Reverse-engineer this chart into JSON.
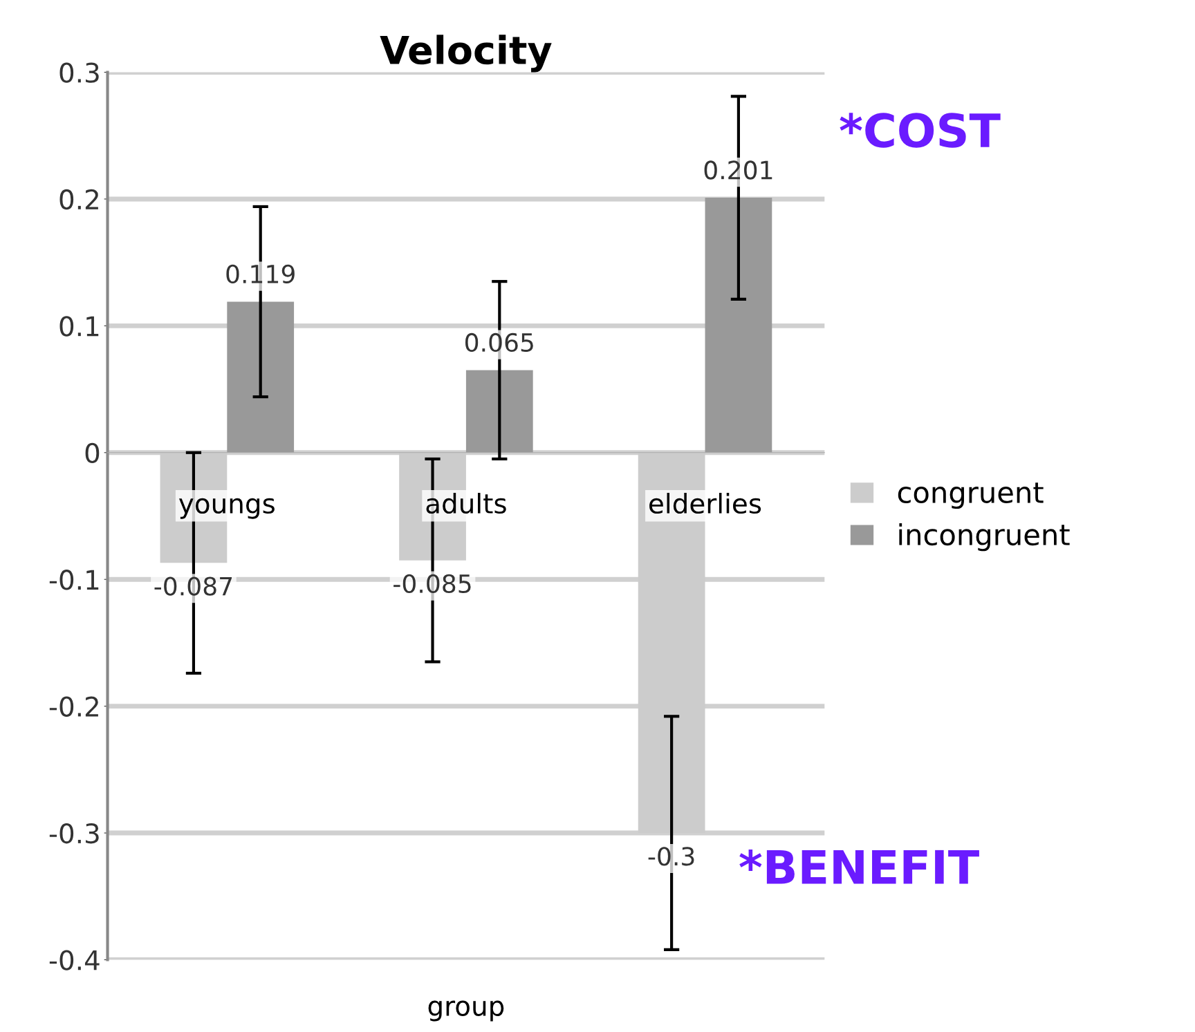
{
  "chart_data": {
    "type": "bar",
    "title": "Velocity",
    "xlabel": "group",
    "categories": [
      "youngs",
      "adults",
      "elderlies"
    ],
    "series": [
      {
        "name": "congruent",
        "color": "#cccccc",
        "values": [
          -0.087,
          -0.085,
          -0.3
        ],
        "errors": [
          0.087,
          0.08,
          0.092
        ]
      },
      {
        "name": "incongruent",
        "color": "#999999",
        "values": [
          0.119,
          0.065,
          0.201
        ],
        "errors": [
          0.075,
          0.07,
          0.08
        ]
      }
    ],
    "ylim": [
      -0.4,
      0.3
    ],
    "yticks": [
      -0.4,
      -0.3,
      -0.2,
      -0.1,
      0,
      0.1,
      0.2,
      0.3
    ],
    "grid": "y",
    "legend": "right",
    "data_labels": true,
    "annotations": [
      "*COST",
      "*BENEFIT"
    ]
  }
}
